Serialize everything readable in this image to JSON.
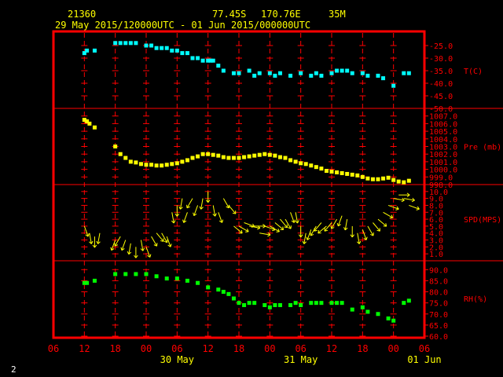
{
  "header": {
    "station": "21360",
    "lat": "77.45S",
    "lon": "170.76E",
    "height": "35M",
    "period": "29 May 2015/120000UTC - 01 Jun 2015/000000UTC"
  },
  "corner_label": "2",
  "colors": {
    "background": "#000000",
    "frame": "#ff0000",
    "grid": "#ff0000",
    "label": "#ff0000",
    "header_text": "#ffff00",
    "temperature": "#00ffff",
    "pressure": "#ffff00",
    "wind": "#ffff00",
    "humidity": "#00ff00"
  },
  "chart_data": {
    "type": "meteogram",
    "x_hours": [
      -6,
      66
    ],
    "x_ticks": [
      "06",
      "12",
      "18",
      "00",
      "06",
      "12",
      "18",
      "00",
      "06",
      "12",
      "18",
      "00",
      "06"
    ],
    "date_labels": [
      {
        "label": "30 May",
        "hour": 18
      },
      {
        "label": "31 May",
        "hour": 42
      },
      {
        "label": "01 Jun",
        "hour": 66
      }
    ],
    "panels": [
      {
        "key": "temperature",
        "label": "T(C)",
        "type": "scatter",
        "ylim": [
          -50,
          -20
        ],
        "ticks": [
          "-25.0",
          "-30.0",
          "-35.0",
          "-40.0",
          "-45.0",
          "-50.0"
        ],
        "tick_values": [
          -25,
          -30,
          -35,
          -40,
          -45,
          -50
        ],
        "x": [
          0,
          0.5,
          2,
          6,
          7,
          8,
          9,
          10,
          12,
          13,
          14,
          15,
          16,
          17,
          18,
          19,
          20,
          21,
          22,
          23,
          24,
          24.5,
          25,
          26,
          27,
          29,
          30,
          32,
          33,
          34,
          36,
          37,
          38,
          40,
          42,
          44,
          45,
          46,
          48,
          49,
          50,
          51,
          52,
          54,
          55,
          57,
          58,
          60,
          62,
          63
        ],
        "y": [
          -28,
          -27,
          -27,
          -24,
          -24,
          -24,
          -24,
          -24,
          -25,
          -25,
          -26,
          -26,
          -26,
          -27,
          -27,
          -28,
          -28,
          -30,
          -30,
          -31,
          -31,
          -31,
          -31,
          -33,
          -35,
          -36,
          -36,
          -35,
          -37,
          -36,
          -36,
          -37,
          -36,
          -37,
          -36,
          -37,
          -36,
          -37,
          -36,
          -35,
          -35,
          -35,
          -36,
          -36,
          -37,
          -37,
          -38,
          -41,
          -36,
          -36
        ]
      },
      {
        "key": "pressure",
        "label": "Pre (mb)",
        "type": "scatter",
        "ylim": [
          998,
          1008
        ],
        "ticks": [
          "1007.0",
          "1006.0",
          "1005.0",
          "1004.0",
          "1003.0",
          "1002.0",
          "1001.0",
          "1000.0",
          "999.0",
          "998.0"
        ],
        "tick_values": [
          1007,
          1006,
          1005,
          1004,
          1003,
          1002,
          1001,
          1000,
          999,
          998
        ],
        "x": [
          0,
          0.5,
          1,
          2,
          6,
          7,
          8,
          9,
          10,
          11,
          12,
          13,
          14,
          15,
          16,
          17,
          18,
          19,
          20,
          21,
          22,
          23,
          24,
          25,
          26,
          27,
          28,
          29,
          30,
          31,
          32,
          33,
          34,
          35,
          36,
          37,
          38,
          39,
          40,
          41,
          42,
          43,
          44,
          45,
          46,
          47,
          48,
          49,
          50,
          51,
          52,
          53,
          54,
          55,
          56,
          57,
          58,
          59,
          60,
          61,
          62,
          63
        ],
        "y": [
          1006.5,
          1006.3,
          1006,
          1005.5,
          1003,
          1002,
          1001.5,
          1001,
          1000.9,
          1000.7,
          1000.6,
          1000.6,
          1000.5,
          1000.5,
          1000.6,
          1000.7,
          1000.8,
          1001,
          1001.2,
          1001.5,
          1001.7,
          1002,
          1002,
          1001.9,
          1001.8,
          1001.6,
          1001.5,
          1001.5,
          1001.5,
          1001.6,
          1001.7,
          1001.8,
          1001.9,
          1002,
          1001.9,
          1001.8,
          1001.6,
          1001.5,
          1001.2,
          1001,
          1000.8,
          1000.7,
          1000.5,
          1000.3,
          1000.1,
          999.8,
          999.7,
          999.6,
          999.5,
          999.4,
          999.3,
          999.2,
          999,
          998.8,
          998.7,
          998.7,
          998.8,
          998.9,
          998.6,
          998.4,
          998.3,
          998.5
        ]
      },
      {
        "key": "wind",
        "label": "SPD(MPS)",
        "type": "scatter",
        "ylim": [
          0,
          11
        ],
        "ticks": [
          "10.0",
          "9.0",
          "8.0",
          "7.0",
          "6.0",
          "5.0",
          "4.0",
          "3.0",
          "2.0",
          "1.0"
        ],
        "tick_values": [
          10,
          9,
          8,
          7,
          6,
          5,
          4,
          3,
          2,
          1
        ],
        "x": [
          0,
          1,
          2,
          3,
          6,
          7,
          8,
          9,
          10,
          11,
          12,
          13,
          14,
          15,
          16,
          17,
          18,
          19,
          20,
          21,
          22,
          23,
          24,
          25,
          26,
          27,
          28,
          29,
          30,
          31,
          32,
          33,
          34,
          35,
          36,
          37,
          38,
          39,
          40,
          41,
          42,
          43,
          44,
          45,
          46,
          47,
          48,
          49,
          50,
          51,
          52,
          53,
          54,
          55,
          56,
          57,
          58,
          59,
          60,
          61,
          62,
          63
        ],
        "y": [
          5,
          4,
          3.5,
          4,
          3,
          3.5,
          3,
          2.5,
          2,
          3,
          2,
          3.5,
          4,
          4,
          3.5,
          7,
          8,
          9,
          7,
          9,
          8,
          9,
          10,
          8,
          7,
          9,
          8,
          5,
          5,
          5.5,
          5,
          5,
          4,
          5,
          5,
          5.5,
          6,
          6,
          7,
          7,
          5,
          4,
          4.5,
          5,
          5.5,
          5,
          5.5,
          6,
          6.5,
          6,
          5,
          4,
          4.5,
          5,
          5.5,
          6,
          7,
          8,
          9,
          9.5,
          9,
          8
        ],
        "direction_deg": [
          160,
          170,
          180,
          190,
          200,
          210,
          200,
          190,
          180,
          170,
          160,
          150,
          140,
          150,
          160,
          170,
          180,
          190,
          200,
          210,
          200,
          190,
          180,
          170,
          160,
          150,
          140,
          130,
          120,
          110,
          100,
          90,
          100,
          110,
          120,
          130,
          140,
          150,
          160,
          170,
          180,
          190,
          200,
          210,
          220,
          230,
          220,
          210,
          200,
          190,
          180,
          170,
          160,
          150,
          140,
          130,
          120,
          110,
          100,
          90,
          100,
          110
        ]
      },
      {
        "key": "humidity",
        "label": "RH(%)",
        "type": "scatter",
        "ylim": [
          60,
          94
        ],
        "ticks": [
          "90.0",
          "85.0",
          "80.0",
          "75.0",
          "70.0",
          "65.0",
          "60.0"
        ],
        "tick_values": [
          90,
          85,
          80,
          75,
          70,
          65,
          60
        ],
        "x": [
          0,
          0.5,
          2,
          6,
          8,
          10,
          12,
          14,
          16,
          18,
          20,
          22,
          24,
          26,
          27,
          28,
          29,
          30,
          31,
          32,
          33,
          35,
          36,
          37,
          38,
          40,
          41,
          42,
          44,
          45,
          46,
          48,
          49,
          50,
          52,
          54,
          55,
          57,
          59,
          60,
          62,
          63
        ],
        "y": [
          84,
          84,
          85,
          88,
          88,
          88,
          88,
          87,
          86,
          86,
          85,
          84,
          82,
          81,
          80,
          79,
          77,
          75,
          74,
          75,
          75,
          74,
          73,
          74,
          74,
          74,
          75,
          74,
          75,
          75,
          75,
          75,
          75,
          75,
          72,
          73,
          71,
          70,
          68,
          67,
          75,
          76
        ]
      }
    ]
  }
}
